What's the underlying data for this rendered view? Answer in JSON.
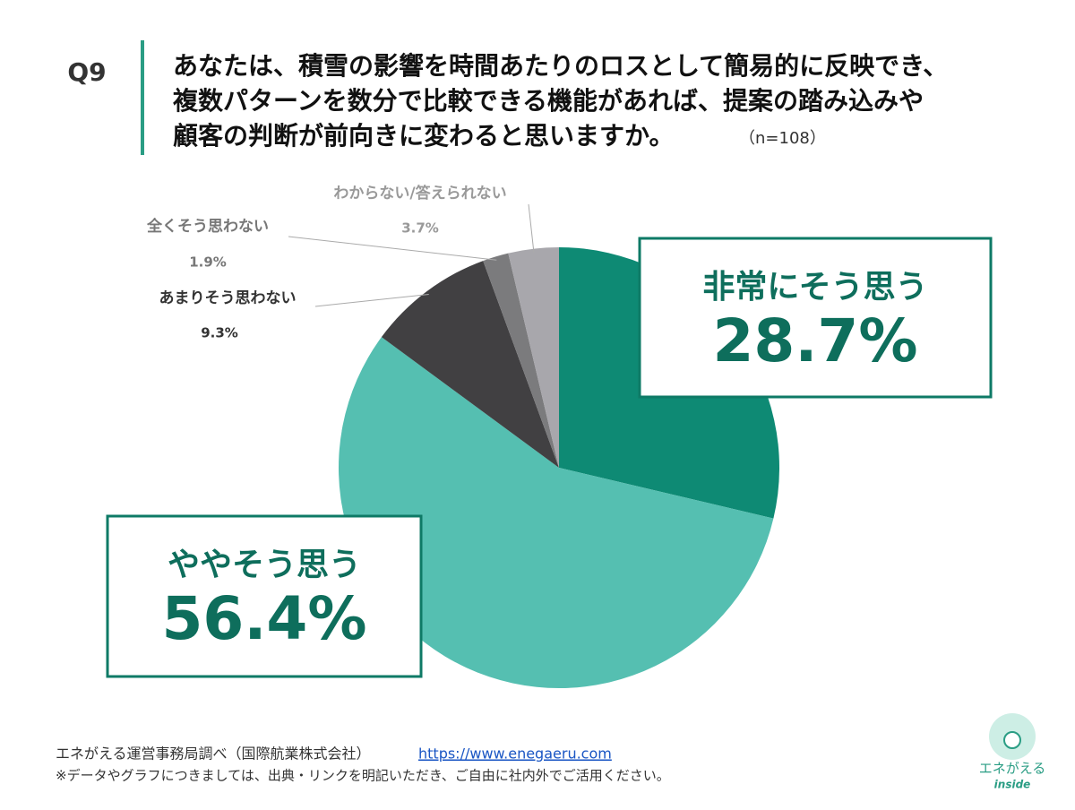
{
  "question_no": "Q9",
  "title": [
    "あなたは、積雪の影響を時間あたりのロスとして簡易的に反映でき、",
    "複数パターンを数分で比較できる機能があれば、提案の踏み込みや",
    "顧客の判断が前向きに変わると思いますか。"
  ],
  "note": "（n=108）",
  "chart_data": {
    "type": "pie",
    "categories": [
      "非常にそう思う",
      "ややそう思う",
      "あまりそう思わない",
      "全くそう思わない",
      "わからない/答えられない"
    ],
    "values": [
      28.7,
      56.4,
      9.3,
      1.9,
      3.7
    ],
    "value_labels": [
      "28.7%",
      "56.4%",
      "9.3%",
      "1.9%",
      "3.7%"
    ],
    "colors": [
      "#0e8a74",
      "#55bfb1",
      "#414042",
      "#7b7b7d",
      "#a8a7ac"
    ]
  },
  "footer": {
    "source": "エネがえる運営事務局調べ（国際航業株式会社）",
    "url": "https://www.enegaeru.com",
    "notice": "※データやグラフにつきましては、出典・リンクを明記いただき、ご自由に社内外でご活用ください。"
  },
  "logo": {
    "name": "エネがえる",
    "sub": "inside"
  }
}
